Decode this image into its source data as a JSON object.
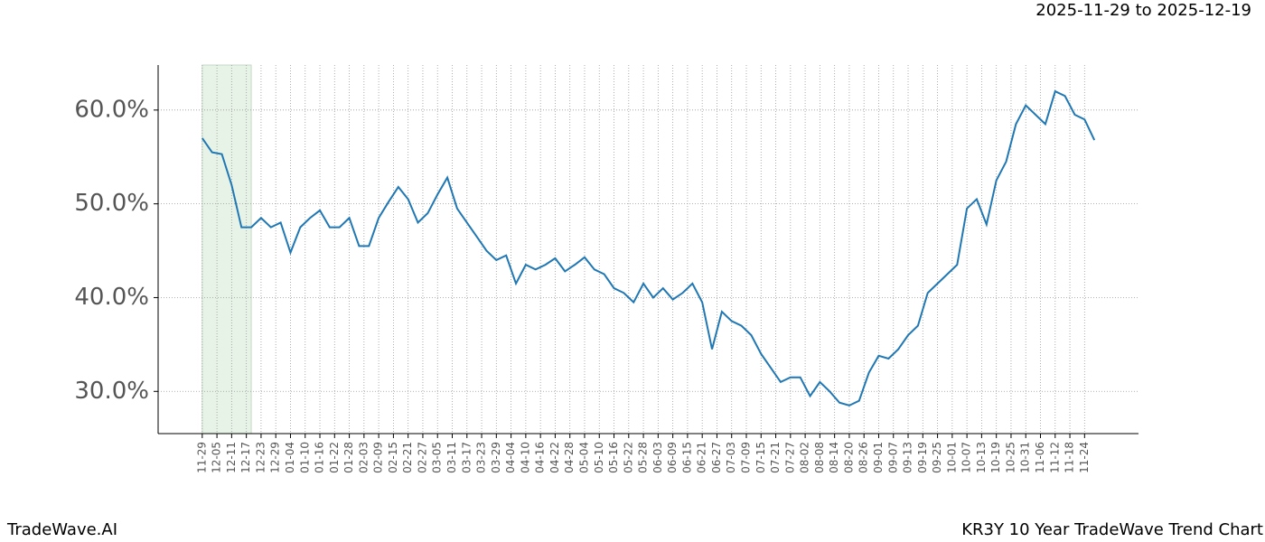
{
  "chart_data": {
    "type": "line",
    "title": "2025-11-29 to 2025-12-19",
    "footer_left": "TradeWave.AI",
    "footer_right": "KR3Y 10 Year TradeWave Trend Chart",
    "highlight": {
      "from": 0,
      "to": 20,
      "color": "#d8ecd8"
    },
    "xlim": [
      -18,
      382
    ],
    "ylim": [
      25.5,
      64.8
    ],
    "yticks": [
      {
        "value": 30,
        "label": "30.0%"
      },
      {
        "value": 40,
        "label": "40.0%"
      },
      {
        "value": 50,
        "label": "50.0%"
      },
      {
        "value": 60,
        "label": "60.0%"
      }
    ],
    "xticks": [
      {
        "value": 0,
        "label": "11-29"
      },
      {
        "value": 6,
        "label": "12-05"
      },
      {
        "value": 12,
        "label": "12-11"
      },
      {
        "value": 18,
        "label": "12-17"
      },
      {
        "value": 24,
        "label": "12-23"
      },
      {
        "value": 30,
        "label": "12-29"
      },
      {
        "value": 36,
        "label": "01-04"
      },
      {
        "value": 42,
        "label": "01-10"
      },
      {
        "value": 48,
        "label": "01-16"
      },
      {
        "value": 54,
        "label": "01-22"
      },
      {
        "value": 60,
        "label": "01-28"
      },
      {
        "value": 66,
        "label": "02-03"
      },
      {
        "value": 72,
        "label": "02-09"
      },
      {
        "value": 78,
        "label": "02-15"
      },
      {
        "value": 84,
        "label": "02-21"
      },
      {
        "value": 90,
        "label": "02-27"
      },
      {
        "value": 96,
        "label": "03-05"
      },
      {
        "value": 102,
        "label": "03-11"
      },
      {
        "value": 108,
        "label": "03-17"
      },
      {
        "value": 114,
        "label": "03-23"
      },
      {
        "value": 120,
        "label": "03-29"
      },
      {
        "value": 126,
        "label": "04-04"
      },
      {
        "value": 132,
        "label": "04-10"
      },
      {
        "value": 138,
        "label": "04-16"
      },
      {
        "value": 144,
        "label": "04-22"
      },
      {
        "value": 150,
        "label": "04-28"
      },
      {
        "value": 156,
        "label": "05-04"
      },
      {
        "value": 162,
        "label": "05-10"
      },
      {
        "value": 168,
        "label": "05-16"
      },
      {
        "value": 174,
        "label": "05-22"
      },
      {
        "value": 180,
        "label": "05-28"
      },
      {
        "value": 186,
        "label": "06-03"
      },
      {
        "value": 192,
        "label": "06-09"
      },
      {
        "value": 198,
        "label": "06-15"
      },
      {
        "value": 204,
        "label": "06-21"
      },
      {
        "value": 210,
        "label": "06-27"
      },
      {
        "value": 216,
        "label": "07-03"
      },
      {
        "value": 222,
        "label": "07-09"
      },
      {
        "value": 228,
        "label": "07-15"
      },
      {
        "value": 234,
        "label": "07-21"
      },
      {
        "value": 240,
        "label": "07-27"
      },
      {
        "value": 246,
        "label": "08-02"
      },
      {
        "value": 252,
        "label": "08-08"
      },
      {
        "value": 258,
        "label": "08-14"
      },
      {
        "value": 264,
        "label": "08-20"
      },
      {
        "value": 270,
        "label": "08-26"
      },
      {
        "value": 276,
        "label": "09-01"
      },
      {
        "value": 282,
        "label": "09-07"
      },
      {
        "value": 288,
        "label": "09-13"
      },
      {
        "value": 294,
        "label": "09-19"
      },
      {
        "value": 300,
        "label": "09-25"
      },
      {
        "value": 306,
        "label": "10-01"
      },
      {
        "value": 312,
        "label": "10-07"
      },
      {
        "value": 318,
        "label": "10-13"
      },
      {
        "value": 324,
        "label": "10-19"
      },
      {
        "value": 330,
        "label": "10-25"
      },
      {
        "value": 336,
        "label": "10-31"
      },
      {
        "value": 342,
        "label": "11-06"
      },
      {
        "value": 348,
        "label": "11-12"
      },
      {
        "value": 354,
        "label": "11-18"
      },
      {
        "value": 360,
        "label": "11-24"
      }
    ],
    "grid": true,
    "series": [
      {
        "color": "#1f77b4",
        "x": [
          0,
          4,
          8,
          12,
          16,
          20,
          24,
          28,
          32,
          36,
          40,
          44,
          48,
          52,
          56,
          60,
          64,
          68,
          72,
          76,
          80,
          84,
          88,
          92,
          96,
          100,
          104,
          108,
          112,
          116,
          120,
          124,
          128,
          132,
          136,
          140,
          144,
          148,
          152,
          156,
          160,
          164,
          168,
          172,
          176,
          180,
          184,
          188,
          192,
          196,
          200,
          204,
          208,
          212,
          216,
          220,
          224,
          228,
          232,
          236,
          240,
          244,
          248,
          252,
          256,
          260,
          264,
          268,
          272,
          276,
          280,
          284,
          288,
          292,
          296,
          300,
          304,
          308,
          312,
          316,
          320,
          324,
          328,
          332,
          336,
          340,
          344,
          348,
          352,
          356,
          360,
          364
        ],
        "values": [
          57.0,
          55.5,
          55.3,
          52.0,
          47.5,
          47.5,
          48.5,
          47.5,
          48.0,
          44.8,
          47.5,
          48.5,
          49.3,
          47.5,
          47.5,
          48.5,
          45.5,
          45.5,
          48.5,
          50.2,
          51.8,
          50.5,
          48.0,
          49.0,
          51.0,
          52.8,
          49.5,
          48.0,
          46.5,
          45.0,
          44.0,
          44.5,
          41.5,
          43.5,
          43.0,
          43.5,
          44.2,
          42.8,
          43.5,
          44.3,
          43.0,
          42.5,
          41.0,
          40.5,
          39.5,
          41.5,
          40.0,
          41.0,
          39.8,
          40.5,
          41.5,
          39.5,
          34.5,
          38.5,
          37.5,
          37.0,
          36.0,
          34.0,
          32.5,
          31.0,
          31.5,
          31.5,
          29.5,
          31.0,
          30.0,
          28.8,
          28.5,
          29.0,
          32.0,
          33.8,
          33.5,
          34.5,
          36.0,
          37.0,
          40.5,
          41.5,
          42.5,
          43.5,
          49.5,
          50.5,
          47.8,
          52.5,
          54.5,
          58.5,
          60.5,
          59.5,
          58.5,
          62.0,
          61.5,
          59.5,
          59.0,
          56.8
        ]
      }
    ]
  }
}
